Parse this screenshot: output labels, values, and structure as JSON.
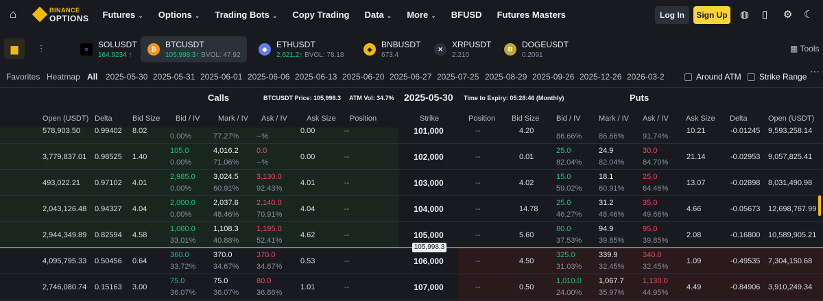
{
  "nav": {
    "logo_top": "BINANCE",
    "logo_bottom": "OPTIONS",
    "menu": [
      "Futures",
      "Options",
      "Trading Bots",
      "Copy Trading",
      "Data",
      "More",
      "BFUSD",
      "Futures Masters"
    ],
    "login": "Log In",
    "signup": "Sign Up"
  },
  "tickers": [
    {
      "name": "SOLUSDT",
      "price": "164.9234",
      "arrow": "↑"
    },
    {
      "name": "BTCUSDT",
      "price": "105,998.3",
      "arrow": "↑",
      "bvol": "BVOL: 47.92"
    },
    {
      "name": "ETHUSDT",
      "price": "2,621.2",
      "arrow": "↑",
      "bvol": "BVOL: 78.18"
    },
    {
      "name": "BNBUSDT",
      "price": "673.4"
    },
    {
      "name": "XRPUSDT",
      "price": "2.210"
    },
    {
      "name": "DOGEUSDT",
      "price": "0.2091"
    }
  ],
  "tools": "Tools",
  "datebar": {
    "favorites": "Favorites",
    "heatmap": "Heatmap",
    "all": "All",
    "dates": [
      "2025-05-30",
      "2025-05-31",
      "2025-06-01",
      "2025-06-06",
      "2025-06-13",
      "2025-06-20",
      "2025-06-27",
      "2025-07-25",
      "2025-08-29",
      "2025-09-26",
      "2025-12-26",
      "2026-03-2"
    ],
    "around_atm": "Around ATM",
    "strike_range": "Strike Range"
  },
  "header": {
    "calls": "Calls",
    "puts": "Puts",
    "price": "BTCUSDT Price: 105,998.3",
    "atm": "ATM Vol: 34.7%",
    "expiry_date": "2025-05-30",
    "expiry": "Time to Expiry: 05:28:46 (Monthly)"
  },
  "columns": {
    "calls": [
      "Open (USDT)",
      "Delta",
      "Bid Size",
      "Bid / IV",
      "Mark / IV",
      "Ask / IV",
      "Ask Size",
      "Position"
    ],
    "strike": "Strike",
    "puts": [
      "Position",
      "Bid Size",
      "Bid / IV",
      "Mark / IV",
      "Ask / IV",
      "Ask Size",
      "Delta",
      "Open (USDT)"
    ]
  },
  "rows": [
    {
      "c_open": "578,903.50",
      "c_delta": "0.99402",
      "c_bidsize": "8.02",
      "c_bid": "",
      "c_biv": "0.00%",
      "c_mark": "",
      "c_miv": "77.27%",
      "c_ask": "",
      "c_aiv": "--%",
      "c_asksize": "0.00",
      "c_pos": "--",
      "strike": "101,000",
      "p_pos": "--",
      "p_bidsize": "4.20",
      "p_bid": "",
      "p_biv": "86.66%",
      "p_mark": "",
      "p_miv": "86.66%",
      "p_ask": "",
      "p_aiv": "91.74%",
      "p_asksize": "10.21",
      "p_delta": "-0.01245",
      "p_open": "9,593,258.14"
    },
    {
      "c_open": "3,779,837.01",
      "c_delta": "0.98525",
      "c_bidsize": "1.40",
      "c_bid": "105.0",
      "c_biv": "0.00%",
      "c_mark": "4,016.2",
      "c_miv": "71.06%",
      "c_ask": "0.0",
      "c_aiv": "--%",
      "c_asksize": "0.00",
      "c_pos": "--",
      "strike": "102,000",
      "p_pos": "--",
      "p_bidsize": "0.01",
      "p_bid": "25.0",
      "p_biv": "82.04%",
      "p_mark": "24.9",
      "p_miv": "82.04%",
      "p_ask": "30.0",
      "p_aiv": "84.70%",
      "p_asksize": "21.14",
      "p_delta": "-0.02953",
      "p_open": "9,057,825.41"
    },
    {
      "c_open": "493,022.21",
      "c_delta": "0.97102",
      "c_bidsize": "4.01",
      "c_bid": "2,985.0",
      "c_biv": "0.00%",
      "c_mark": "3,024.5",
      "c_miv": "60.91%",
      "c_ask": "3,130.0",
      "c_aiv": "92.43%",
      "c_asksize": "4.01",
      "c_pos": "--",
      "strike": "103,000",
      "p_pos": "--",
      "p_bidsize": "4.02",
      "p_bid": "15.0",
      "p_biv": "59.02%",
      "p_mark": "18.1",
      "p_miv": "60.91%",
      "p_ask": "25.0",
      "p_aiv": "64.46%",
      "p_asksize": "13.07",
      "p_delta": "-0.02898",
      "p_open": "8,031,490.98"
    },
    {
      "c_open": "2,043,126.48",
      "c_delta": "0.94327",
      "c_bidsize": "4.04",
      "c_bid": "2,000.0",
      "c_biv": "0.00%",
      "c_mark": "2,037.6",
      "c_miv": "48.46%",
      "c_ask": "2,140.0",
      "c_aiv": "70.91%",
      "c_asksize": "4.04",
      "c_pos": "--",
      "strike": "104,000",
      "p_pos": "--",
      "p_bidsize": "14.78",
      "p_bid": "25.0",
      "p_biv": "46.27%",
      "p_mark": "31.2",
      "p_miv": "48.46%",
      "p_ask": "35.0",
      "p_aiv": "49.66%",
      "p_asksize": "4.66",
      "p_delta": "-0.05673",
      "p_open": "12,698,767.99"
    },
    {
      "c_open": "2,944,349.89",
      "c_delta": "0.82594",
      "c_bidsize": "4.58",
      "c_bid": "1,060.0",
      "c_biv": "33.01%",
      "c_mark": "1,108.3",
      "c_miv": "40.88%",
      "c_ask": "1,195.0",
      "c_aiv": "52.41%",
      "c_asksize": "4.62",
      "c_pos": "--",
      "strike": "105,000",
      "p_pos": "--",
      "p_bidsize": "5.60",
      "p_bid": "80.0",
      "p_biv": "37.53%",
      "p_mark": "94.9",
      "p_miv": "39.85%",
      "p_ask": "95.0",
      "p_aiv": "39.85%",
      "p_asksize": "2.08",
      "p_delta": "-0.16800",
      "p_open": "10,589,905.21"
    },
    {
      "c_open": "4,095,795.33",
      "c_delta": "0.50456",
      "c_bidsize": "0.64",
      "c_bid": "360.0",
      "c_biv": "33.72%",
      "c_mark": "370.0",
      "c_miv": "34.67%",
      "c_ask": "370.0",
      "c_aiv": "34.67%",
      "c_asksize": "0.53",
      "c_pos": "--",
      "strike": "106,000",
      "p_pos": "--",
      "p_bidsize": "4.50",
      "p_bid": "325.0",
      "p_biv": "31.03%",
      "p_mark": "339.9",
      "p_miv": "32.45%",
      "p_ask": "340.0",
      "p_aiv": "32.45%",
      "p_asksize": "1.09",
      "p_delta": "-0.49535",
      "p_open": "7,304,150.68"
    },
    {
      "c_open": "2,746,080.74",
      "c_delta": "0.15163",
      "c_bidsize": "3.00",
      "c_bid": "75.0",
      "c_biv": "36.07%",
      "c_mark": "75.0",
      "c_miv": "36.07%",
      "c_ask": "80.0",
      "c_aiv": "36.86%",
      "c_asksize": "1.01",
      "c_pos": "--",
      "strike": "107,000",
      "p_pos": "--",
      "p_bidsize": "0.50",
      "p_bid": "1,010.0",
      "p_biv": "24.00%",
      "p_mark": "1,067.7",
      "p_miv": "35.97%",
      "p_ask": "1,130.0",
      "p_aiv": "44.95%",
      "p_asksize": "4.49",
      "p_delta": "-0.84906",
      "p_open": "3,910,249.34"
    }
  ],
  "price_tag": "105,998.3",
  "colors": {
    "green": "#0ecb81",
    "red": "#f6465d",
    "accent": "#f0b90b"
  }
}
